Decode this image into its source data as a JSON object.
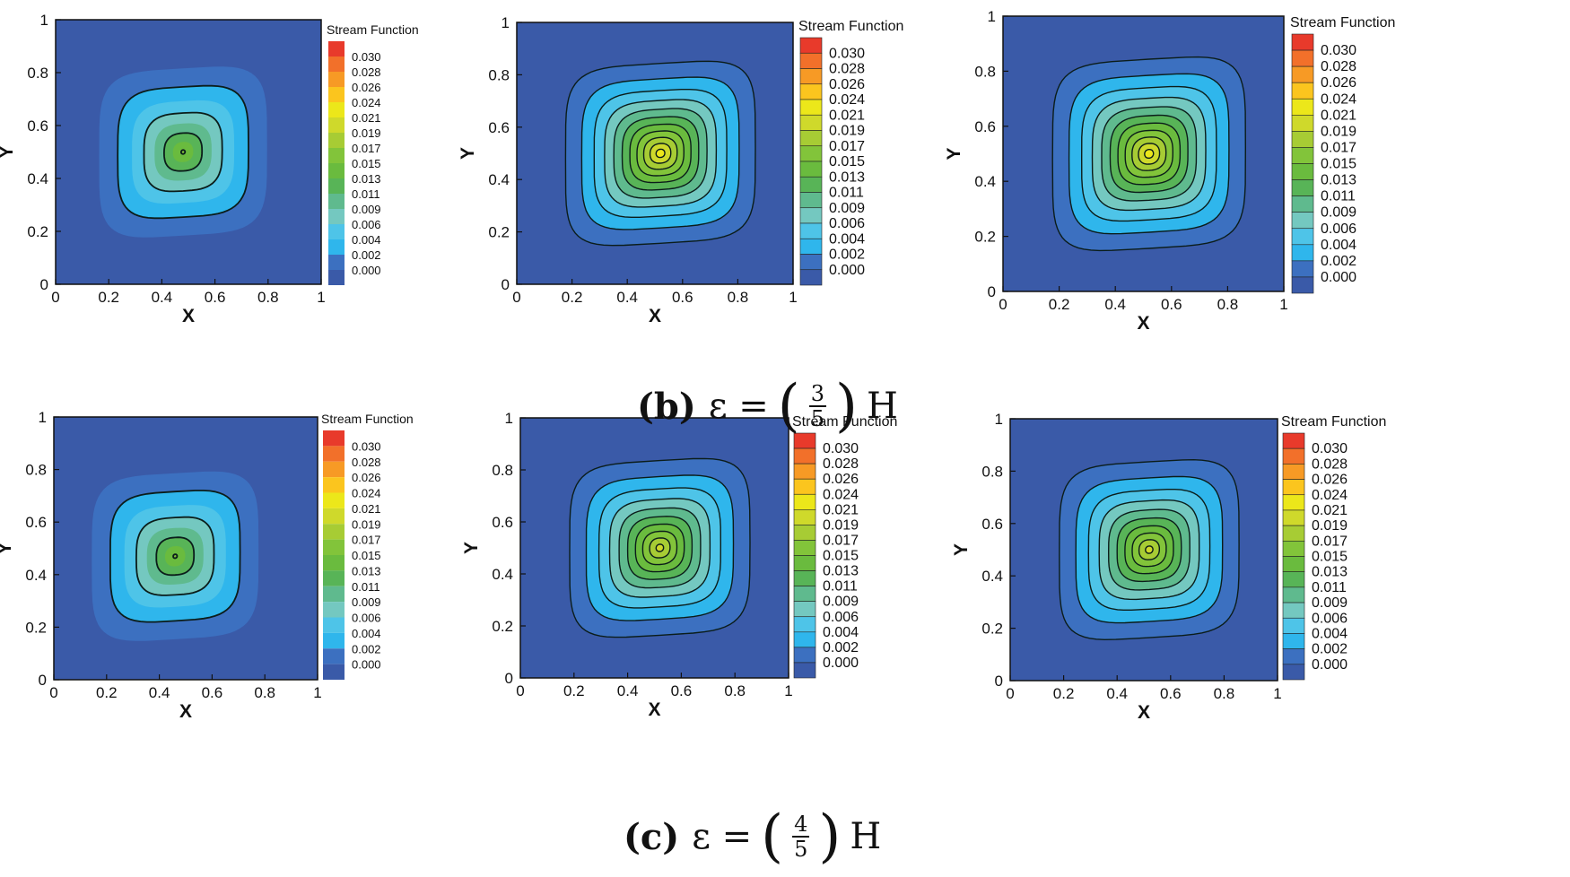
{
  "colors": {
    "levels": [
      "#3a5aa8",
      "#3c70c0",
      "#2fb6ec",
      "#4ec4e8",
      "#74c8c0",
      "#5fba8e",
      "#58b457",
      "#6abb3e",
      "#82c43a",
      "#a7cc34",
      "#cfd92b",
      "#ece71a",
      "#fbc51e",
      "#f79a25",
      "#f2702a",
      "#e83a2b"
    ],
    "contour": "#0b1d1a",
    "frame": "#111111"
  },
  "chart_data": [
    {
      "type": "contour",
      "panel": "top-left",
      "xlabel": "X",
      "ylabel": "Y",
      "xlim": [
        0,
        1
      ],
      "ylim": [
        0,
        1
      ],
      "xticks": [
        "0",
        "0.2",
        "0.4",
        "0.6",
        "0.8",
        "1"
      ],
      "yticks": [
        "0",
        "0.2",
        "0.4",
        "0.6",
        "0.8",
        "1"
      ],
      "legend_title": "Stream Function",
      "legend_values": [
        "0.030",
        "0.028",
        "0.026",
        "0.024",
        "0.021",
        "0.019",
        "0.017",
        "0.015",
        "0.013",
        "0.011",
        "0.009",
        "0.006",
        "0.004",
        "0.002",
        "0.000"
      ],
      "center": [
        0.48,
        0.5
      ],
      "peak": 0.0165,
      "contour_levels": [
        0.004,
        0.008,
        0.012,
        0.016
      ]
    },
    {
      "type": "contour",
      "panel": "top-middle",
      "xlabel": "X",
      "ylabel": "Y",
      "xlim": [
        0,
        1
      ],
      "ylim": [
        0,
        1
      ],
      "xticks": [
        "0",
        "0.2",
        "0.4",
        "0.6",
        "0.8",
        "1"
      ],
      "yticks": [
        "0",
        "0.2",
        "0.4",
        "0.6",
        "0.8",
        "1"
      ],
      "legend_title": "Stream Function",
      "legend_values": [
        "0.030",
        "0.028",
        "0.026",
        "0.024",
        "0.021",
        "0.019",
        "0.017",
        "0.015",
        "0.013",
        "0.011",
        "0.009",
        "0.006",
        "0.004",
        "0.002",
        "0.000"
      ],
      "center": [
        0.52,
        0.5
      ],
      "peak": 0.0235,
      "contour_levels": [
        0.002,
        0.004,
        0.006,
        0.008,
        0.01,
        0.012,
        0.014,
        0.016,
        0.018,
        0.02,
        0.022
      ]
    },
    {
      "type": "contour",
      "panel": "top-right",
      "xlabel": "X",
      "ylabel": "Y",
      "xlim": [
        0,
        1
      ],
      "ylim": [
        0,
        1
      ],
      "xticks": [
        "0",
        "0.2",
        "0.4",
        "0.6",
        "0.8",
        "1"
      ],
      "yticks": [
        "0",
        "0.2",
        "0.4",
        "0.6",
        "0.8",
        "1"
      ],
      "legend_title": "Stream Function",
      "legend_values": [
        "0.030",
        "0.028",
        "0.026",
        "0.024",
        "0.021",
        "0.019",
        "0.017",
        "0.015",
        "0.013",
        "0.011",
        "0.009",
        "0.006",
        "0.004",
        "0.002",
        "0.000"
      ],
      "center": [
        0.52,
        0.5
      ],
      "peak": 0.0235,
      "contour_levels": [
        0.002,
        0.004,
        0.006,
        0.008,
        0.01,
        0.012,
        0.014,
        0.016,
        0.018,
        0.02,
        0.022
      ]
    },
    {
      "type": "contour",
      "panel": "bottom-left",
      "xlabel": "X",
      "ylabel": "Y",
      "xlim": [
        0,
        1
      ],
      "ylim": [
        0,
        1
      ],
      "xticks": [
        "0",
        "0.2",
        "0.4",
        "0.6",
        "0.8",
        "1"
      ],
      "yticks": [
        "0",
        "0.2",
        "0.4",
        "0.6",
        "0.8",
        "1"
      ],
      "legend_title": "Stream Function",
      "legend_values": [
        "0.030",
        "0.028",
        "0.026",
        "0.024",
        "0.021",
        "0.019",
        "0.017",
        "0.015",
        "0.013",
        "0.011",
        "0.009",
        "0.006",
        "0.004",
        "0.002",
        "0.000"
      ],
      "center": [
        0.46,
        0.47
      ],
      "peak": 0.0165,
      "contour_levels": [
        0.004,
        0.008,
        0.012,
        0.016
      ]
    },
    {
      "type": "contour",
      "panel": "bottom-middle",
      "xlabel": "X",
      "ylabel": "Y",
      "xlim": [
        0,
        1
      ],
      "ylim": [
        0,
        1
      ],
      "xticks": [
        "0",
        "0.2",
        "0.4",
        "0.6",
        "0.8",
        "1"
      ],
      "yticks": [
        "0",
        "0.2",
        "0.4",
        "0.6",
        "0.8",
        "1"
      ],
      "legend_title": "Stream Function",
      "legend_values": [
        "0.030",
        "0.028",
        "0.026",
        "0.024",
        "0.021",
        "0.019",
        "0.017",
        "0.015",
        "0.013",
        "0.011",
        "0.009",
        "0.006",
        "0.004",
        "0.002",
        "0.000"
      ],
      "center": [
        0.52,
        0.5
      ],
      "peak": 0.0212,
      "contour_levels": [
        0.002,
        0.004,
        0.006,
        0.008,
        0.01,
        0.012,
        0.014,
        0.016,
        0.018,
        0.02,
        0.021
      ]
    },
    {
      "type": "contour",
      "panel": "bottom-right",
      "xlabel": "X",
      "ylabel": "Y",
      "xlim": [
        0,
        1
      ],
      "ylim": [
        0,
        1
      ],
      "xticks": [
        "0",
        "0.2",
        "0.4",
        "0.6",
        "0.8",
        "1"
      ],
      "yticks": [
        "0",
        "0.2",
        "0.4",
        "0.6",
        "0.8",
        "1"
      ],
      "legend_title": "Stream Function",
      "legend_values": [
        "0.030",
        "0.028",
        "0.026",
        "0.024",
        "0.021",
        "0.019",
        "0.017",
        "0.015",
        "0.013",
        "0.011",
        "0.009",
        "0.006",
        "0.004",
        "0.002",
        "0.000"
      ],
      "center": [
        0.52,
        0.5
      ],
      "peak": 0.0212,
      "contour_levels": [
        0.002,
        0.004,
        0.006,
        0.008,
        0.01,
        0.012,
        0.014,
        0.016,
        0.018,
        0.02,
        0.021
      ]
    }
  ],
  "captions": [
    {
      "tag": "(b)",
      "lhs": "ε =",
      "num": "3",
      "den": "5",
      "rhs": "H"
    },
    {
      "tag": "(c)",
      "lhs": "ε =",
      "num": "4",
      "den": "5",
      "rhs": "H"
    }
  ]
}
